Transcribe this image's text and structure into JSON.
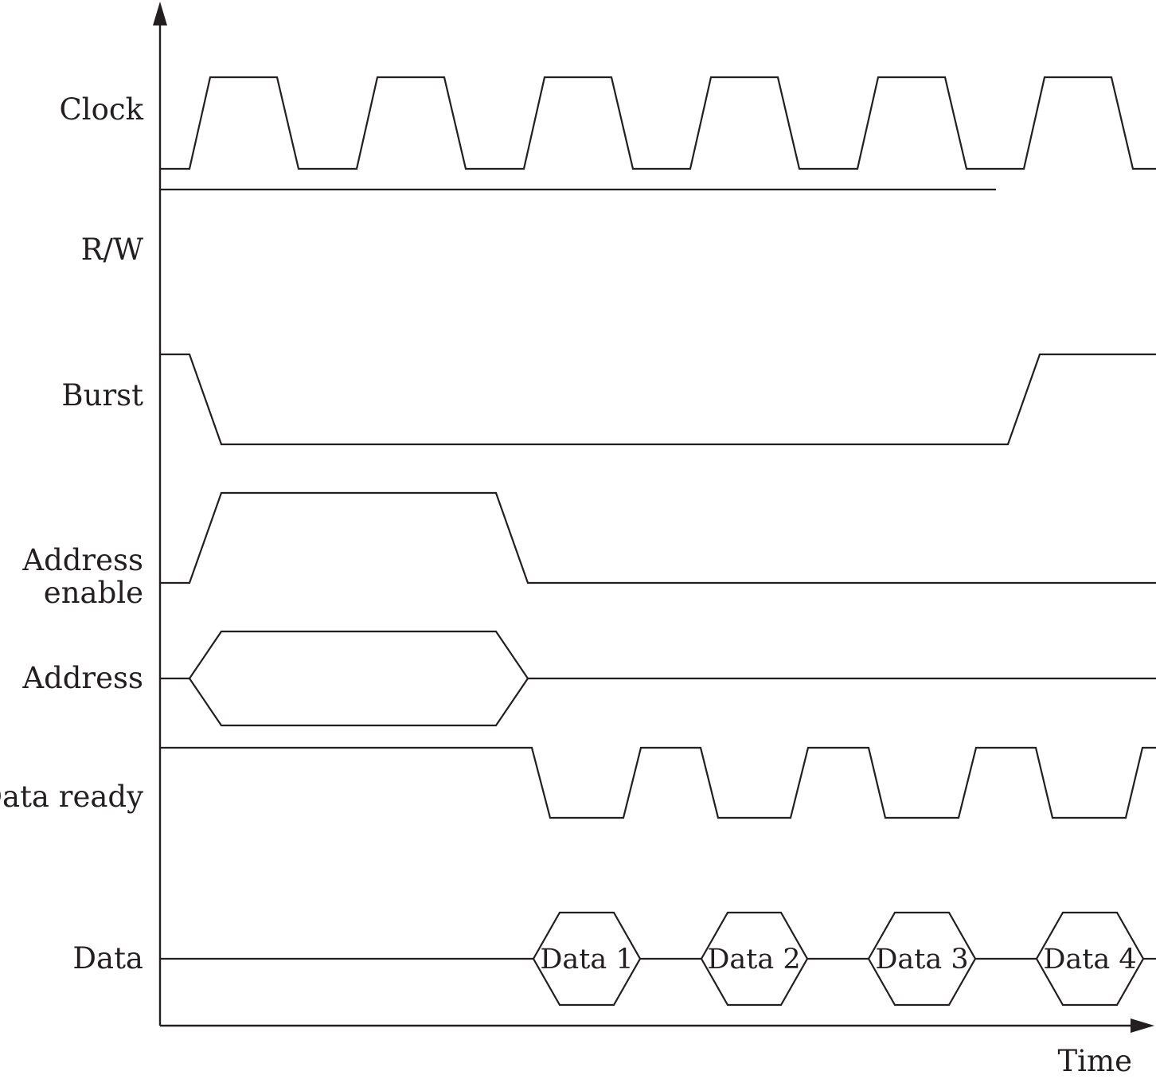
{
  "signals": {
    "clock": "Clock",
    "rw": "R/W",
    "burst": "Burst",
    "address_enable_line1": "Address",
    "address_enable_line2": "enable",
    "address": "Address",
    "data_ready": "Data ready",
    "data": "Data"
  },
  "data_words": [
    "Data 1",
    "Data 2",
    "Data 3",
    "Data 4"
  ],
  "x_axis": {
    "label": "Time"
  }
}
